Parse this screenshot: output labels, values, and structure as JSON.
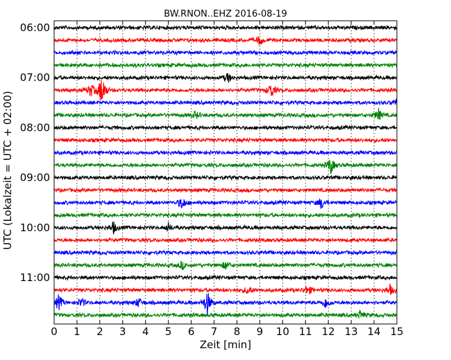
{
  "chart_data": {
    "type": "line",
    "title": "BW.RNON..EHZ 2016-08-19",
    "xlabel": "Zeit  [min]",
    "ylabel": "UTC (Lokalzeit = UTC + 02:00)",
    "xlim": [
      0,
      15
    ],
    "x_ticks": [
      "0",
      "1",
      "2",
      "3",
      "4",
      "5",
      "6",
      "7",
      "8",
      "9",
      "10",
      "11",
      "12",
      "13",
      "14",
      "15"
    ],
    "y_tick_labels": [
      "06:00",
      "07:00",
      "08:00",
      "09:00",
      "10:00",
      "11:00"
    ],
    "grid": "vertical dotted lines at each minute",
    "trace_interval_minutes": 15,
    "trace_color_cycle": [
      "#000000",
      "#ff0000",
      "#0000ff",
      "#008000"
    ],
    "traces": [
      {
        "start": "06:00",
        "events": []
      },
      {
        "start": "06:15",
        "events": [
          {
            "t": 9.0,
            "amp": 0.5
          }
        ]
      },
      {
        "start": "06:30",
        "events": []
      },
      {
        "start": "06:45",
        "events": []
      },
      {
        "start": "07:00",
        "events": [
          {
            "t": 7.6,
            "amp": 0.5
          }
        ]
      },
      {
        "start": "07:15",
        "events": [
          {
            "t": 1.6,
            "amp": 0.7
          },
          {
            "t": 2.1,
            "amp": 1.7
          },
          {
            "t": 9.5,
            "amp": 0.8
          }
        ]
      },
      {
        "start": "07:30",
        "events": [
          {
            "t": 15.0,
            "amp": 0.5
          }
        ]
      },
      {
        "start": "07:45",
        "events": [
          {
            "t": 6.2,
            "amp": 0.4
          },
          {
            "t": 14.2,
            "amp": 0.6
          }
        ]
      },
      {
        "start": "08:00",
        "events": []
      },
      {
        "start": "08:15",
        "events": []
      },
      {
        "start": "08:30",
        "events": []
      },
      {
        "start": "08:45",
        "events": [
          {
            "t": 12.1,
            "amp": 0.9
          }
        ]
      },
      {
        "start": "09:00",
        "events": []
      },
      {
        "start": "09:15",
        "events": []
      },
      {
        "start": "09:30",
        "events": [
          {
            "t": 5.6,
            "amp": 0.7
          },
          {
            "t": 11.7,
            "amp": 0.6
          }
        ]
      },
      {
        "start": "09:45",
        "events": []
      },
      {
        "start": "10:00",
        "events": [
          {
            "t": 2.6,
            "amp": 0.6
          },
          {
            "t": 5.0,
            "amp": 0.4
          }
        ]
      },
      {
        "start": "10:15",
        "events": []
      },
      {
        "start": "10:30",
        "events": []
      },
      {
        "start": "10:45",
        "events": [
          {
            "t": 5.6,
            "amp": 0.4
          },
          {
            "t": 7.5,
            "amp": 0.4
          }
        ]
      },
      {
        "start": "11:00",
        "events": []
      },
      {
        "start": "11:15",
        "events": [
          {
            "t": 8.5,
            "amp": 0.5
          },
          {
            "t": 11.1,
            "amp": 0.5
          },
          {
            "t": 14.7,
            "amp": 0.5
          }
        ]
      },
      {
        "start": "11:30",
        "events": [
          {
            "t": 0.2,
            "amp": 0.8
          },
          {
            "t": 1.2,
            "amp": 0.5
          },
          {
            "t": 3.7,
            "amp": 0.5
          },
          {
            "t": 6.7,
            "amp": 1.3
          },
          {
            "t": 11.9,
            "amp": 0.6
          }
        ]
      },
      {
        "start": "11:45",
        "events": [
          {
            "t": 13.4,
            "amp": 0.4
          }
        ]
      }
    ]
  }
}
